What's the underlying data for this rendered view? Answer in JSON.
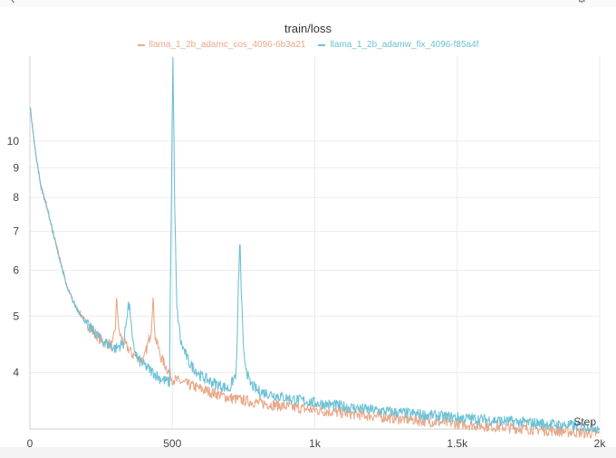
{
  "toolbar": {
    "back_icon": "chevron-left-icon",
    "settings_icon": "gear-icon"
  },
  "chart_data": {
    "type": "line",
    "title": "train/loss",
    "xlabel": "Step",
    "ylabel": "",
    "y_scale": "log",
    "xlim": [
      0,
      2000
    ],
    "ylim": [
      3.2,
      14
    ],
    "x_ticks": [
      0,
      500,
      1000,
      1500,
      2000
    ],
    "x_tick_labels": [
      "0",
      "500",
      "1k",
      "1.5k",
      "2k"
    ],
    "y_ticks": [
      4,
      5,
      6,
      7,
      8,
      9,
      10
    ],
    "y_tick_labels": [
      "4",
      "5",
      "6",
      "7",
      "8",
      "9",
      "10"
    ],
    "grid": true,
    "legend_position": "top",
    "series": [
      {
        "name": "llama_1_2b_adamc_cos_4096-6b3a21",
        "color": "#e8a98a",
        "x": [
          0,
          20,
          40,
          60,
          80,
          100,
          130,
          160,
          200,
          250,
          290,
          300,
          305,
          312,
          330,
          360,
          400,
          425,
          432,
          440,
          460,
          500,
          600,
          700,
          800,
          1000,
          1200,
          1400,
          1600,
          1800,
          2000
        ],
        "y": [
          11.5,
          9.5,
          8.3,
          7.7,
          7.0,
          6.4,
          5.6,
          5.2,
          4.85,
          4.55,
          4.45,
          4.8,
          5.4,
          4.7,
          4.5,
          4.3,
          4.2,
          4.7,
          5.35,
          4.6,
          4.25,
          3.9,
          3.75,
          3.62,
          3.55,
          3.45,
          3.37,
          3.3,
          3.24,
          3.19,
          3.14
        ]
      },
      {
        "name": "llama_1_2b_adamw_fix_4096-f85a4f",
        "color": "#6ec1d6",
        "x": [
          0,
          20,
          40,
          60,
          80,
          100,
          130,
          160,
          200,
          250,
          300,
          330,
          345,
          352,
          360,
          380,
          420,
          460,
          490,
          497,
          502,
          508,
          515,
          530,
          560,
          600,
          640,
          700,
          725,
          737,
          742,
          750,
          770,
          800,
          900,
          1000,
          1200,
          1400,
          1600,
          1800,
          2000
        ],
        "y": [
          11.5,
          9.5,
          8.3,
          7.7,
          7.0,
          6.4,
          5.6,
          5.2,
          4.85,
          4.55,
          4.4,
          4.5,
          5.25,
          5.1,
          4.5,
          4.2,
          4.05,
          3.9,
          3.85,
          8.0,
          13.8,
          7.8,
          5.2,
          4.5,
          4.15,
          3.95,
          3.85,
          3.75,
          4.0,
          6.8,
          5.5,
          4.3,
          3.85,
          3.72,
          3.62,
          3.55,
          3.45,
          3.38,
          3.32,
          3.27,
          3.22
        ]
      }
    ]
  }
}
